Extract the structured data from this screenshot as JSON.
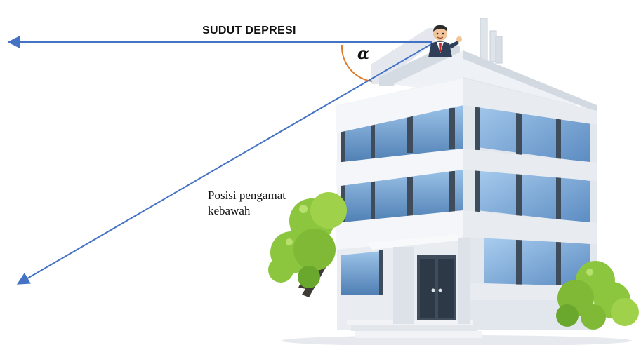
{
  "title": "SUDUT DEPRESI",
  "angle_symbol": "α",
  "caption": {
    "line1": "Posisi pengamat",
    "line2": "kebawah"
  },
  "colors": {
    "arrow": "#4472c4",
    "angle_arc": "#e07b2a",
    "building_wall": "#e9edf2",
    "building_shadow": "#c9d0d9",
    "window_dark": "#3f4c5c",
    "window_glass": "#6e9fd0",
    "tree_light": "#8cc63f",
    "tree_dark": "#5a9b2a"
  },
  "icons": [
    "observer-person-icon",
    "building-illustration",
    "tree-icon"
  ]
}
